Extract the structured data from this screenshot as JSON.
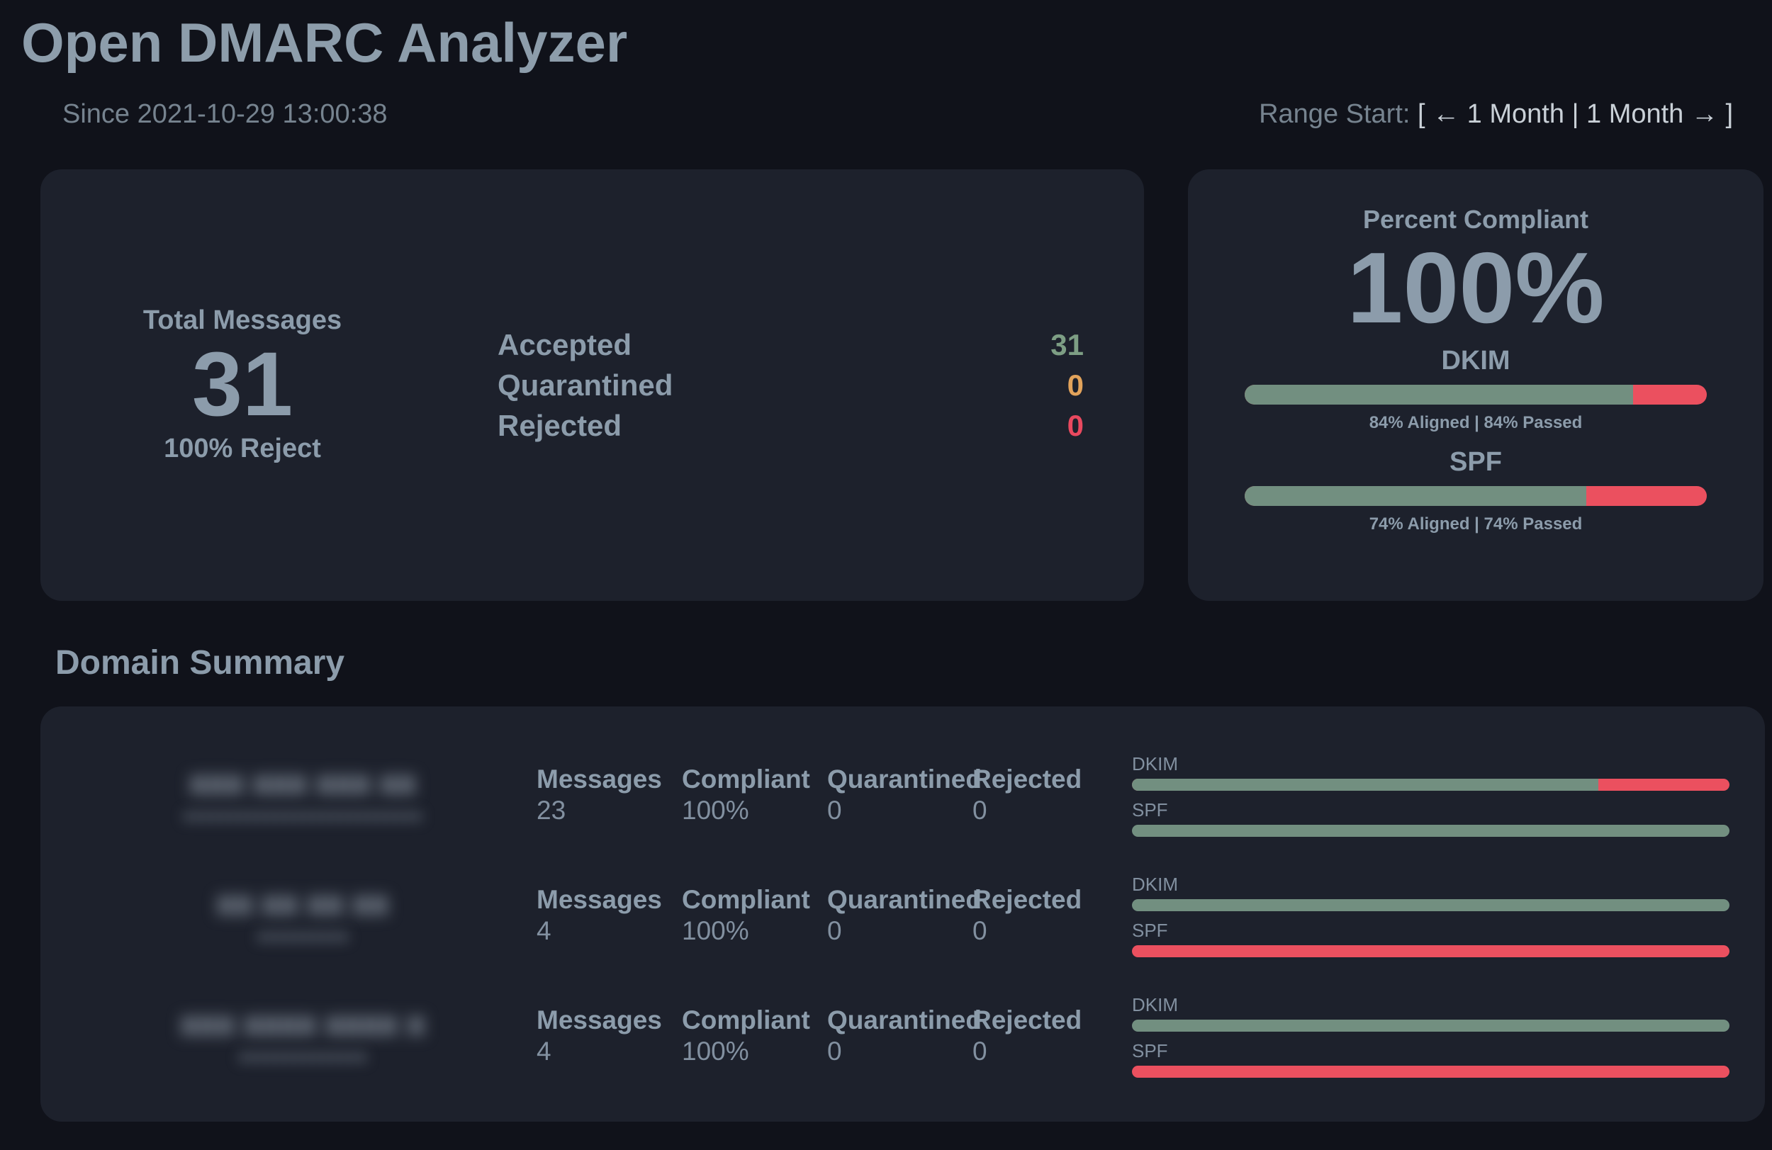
{
  "header": {
    "title": "Open DMARC Analyzer",
    "since": "Since 2021-10-29 13:00:38",
    "range": {
      "label": "Range Start:",
      "bracket_open": "[",
      "prev_label": "← 1 Month",
      "divider": "|",
      "next_label": "1 Month →",
      "bracket_close": "]"
    }
  },
  "overview": {
    "total": {
      "label": "Total Messages",
      "value": "31",
      "subtitle": "100% Reject"
    },
    "dispositions": [
      {
        "label": "Accepted",
        "value": "31"
      },
      {
        "label": "Quarantined",
        "value": "0"
      },
      {
        "label": "Rejected",
        "value": "0"
      }
    ]
  },
  "compliance": {
    "title": "Percent Compliant",
    "percent": "100%",
    "bars": [
      {
        "label": "DKIM",
        "aligned_pct": 84,
        "caption": "84% Aligned | 84% Passed"
      },
      {
        "label": "SPF",
        "aligned_pct": 74,
        "caption": "74% Aligned | 74% Passed"
      }
    ]
  },
  "domain_summary": {
    "title": "Domain Summary",
    "columns": [
      "Messages",
      "Compliant",
      "Quarantined",
      "Rejected"
    ],
    "bar_labels": [
      "DKIM",
      "SPF"
    ],
    "rows": [
      {
        "domain_redacted": "xxx xxx xxx xx",
        "subtitle_redacted": "xxxxxxxxxxxxxxxxxxxxxxxxxx",
        "messages": "23",
        "compliant": "100%",
        "quarantined": "0",
        "rejected": "0",
        "dkim_pct": 78,
        "spf_pct": 100
      },
      {
        "domain_redacted": "xx xx xx xx",
        "subtitle_redacted": "xxxxxxxxxx",
        "messages": "4",
        "compliant": "100%",
        "quarantined": "0",
        "rejected": "0",
        "dkim_pct": 100,
        "spf_pct": 0
      },
      {
        "domain_redacted": "xxx xxxx xxxx x",
        "subtitle_redacted": "xxxxxxxxxxxxxx",
        "messages": "4",
        "compliant": "100%",
        "quarantined": "0",
        "rejected": "0",
        "dkim_pct": 100,
        "spf_pct": 0
      }
    ]
  },
  "colors": {
    "background": "#10121a",
    "card": "#1d212c",
    "heading_text": "#8c9cab",
    "dim_text": "#76838f",
    "bright_text": "#c9d0d7",
    "bar_green": "#728f80",
    "bar_red": "#eb505f",
    "accepted_green": "#7d9e84",
    "quarantined_orange": "#e2a35b",
    "rejected_red": "#e9495f"
  }
}
